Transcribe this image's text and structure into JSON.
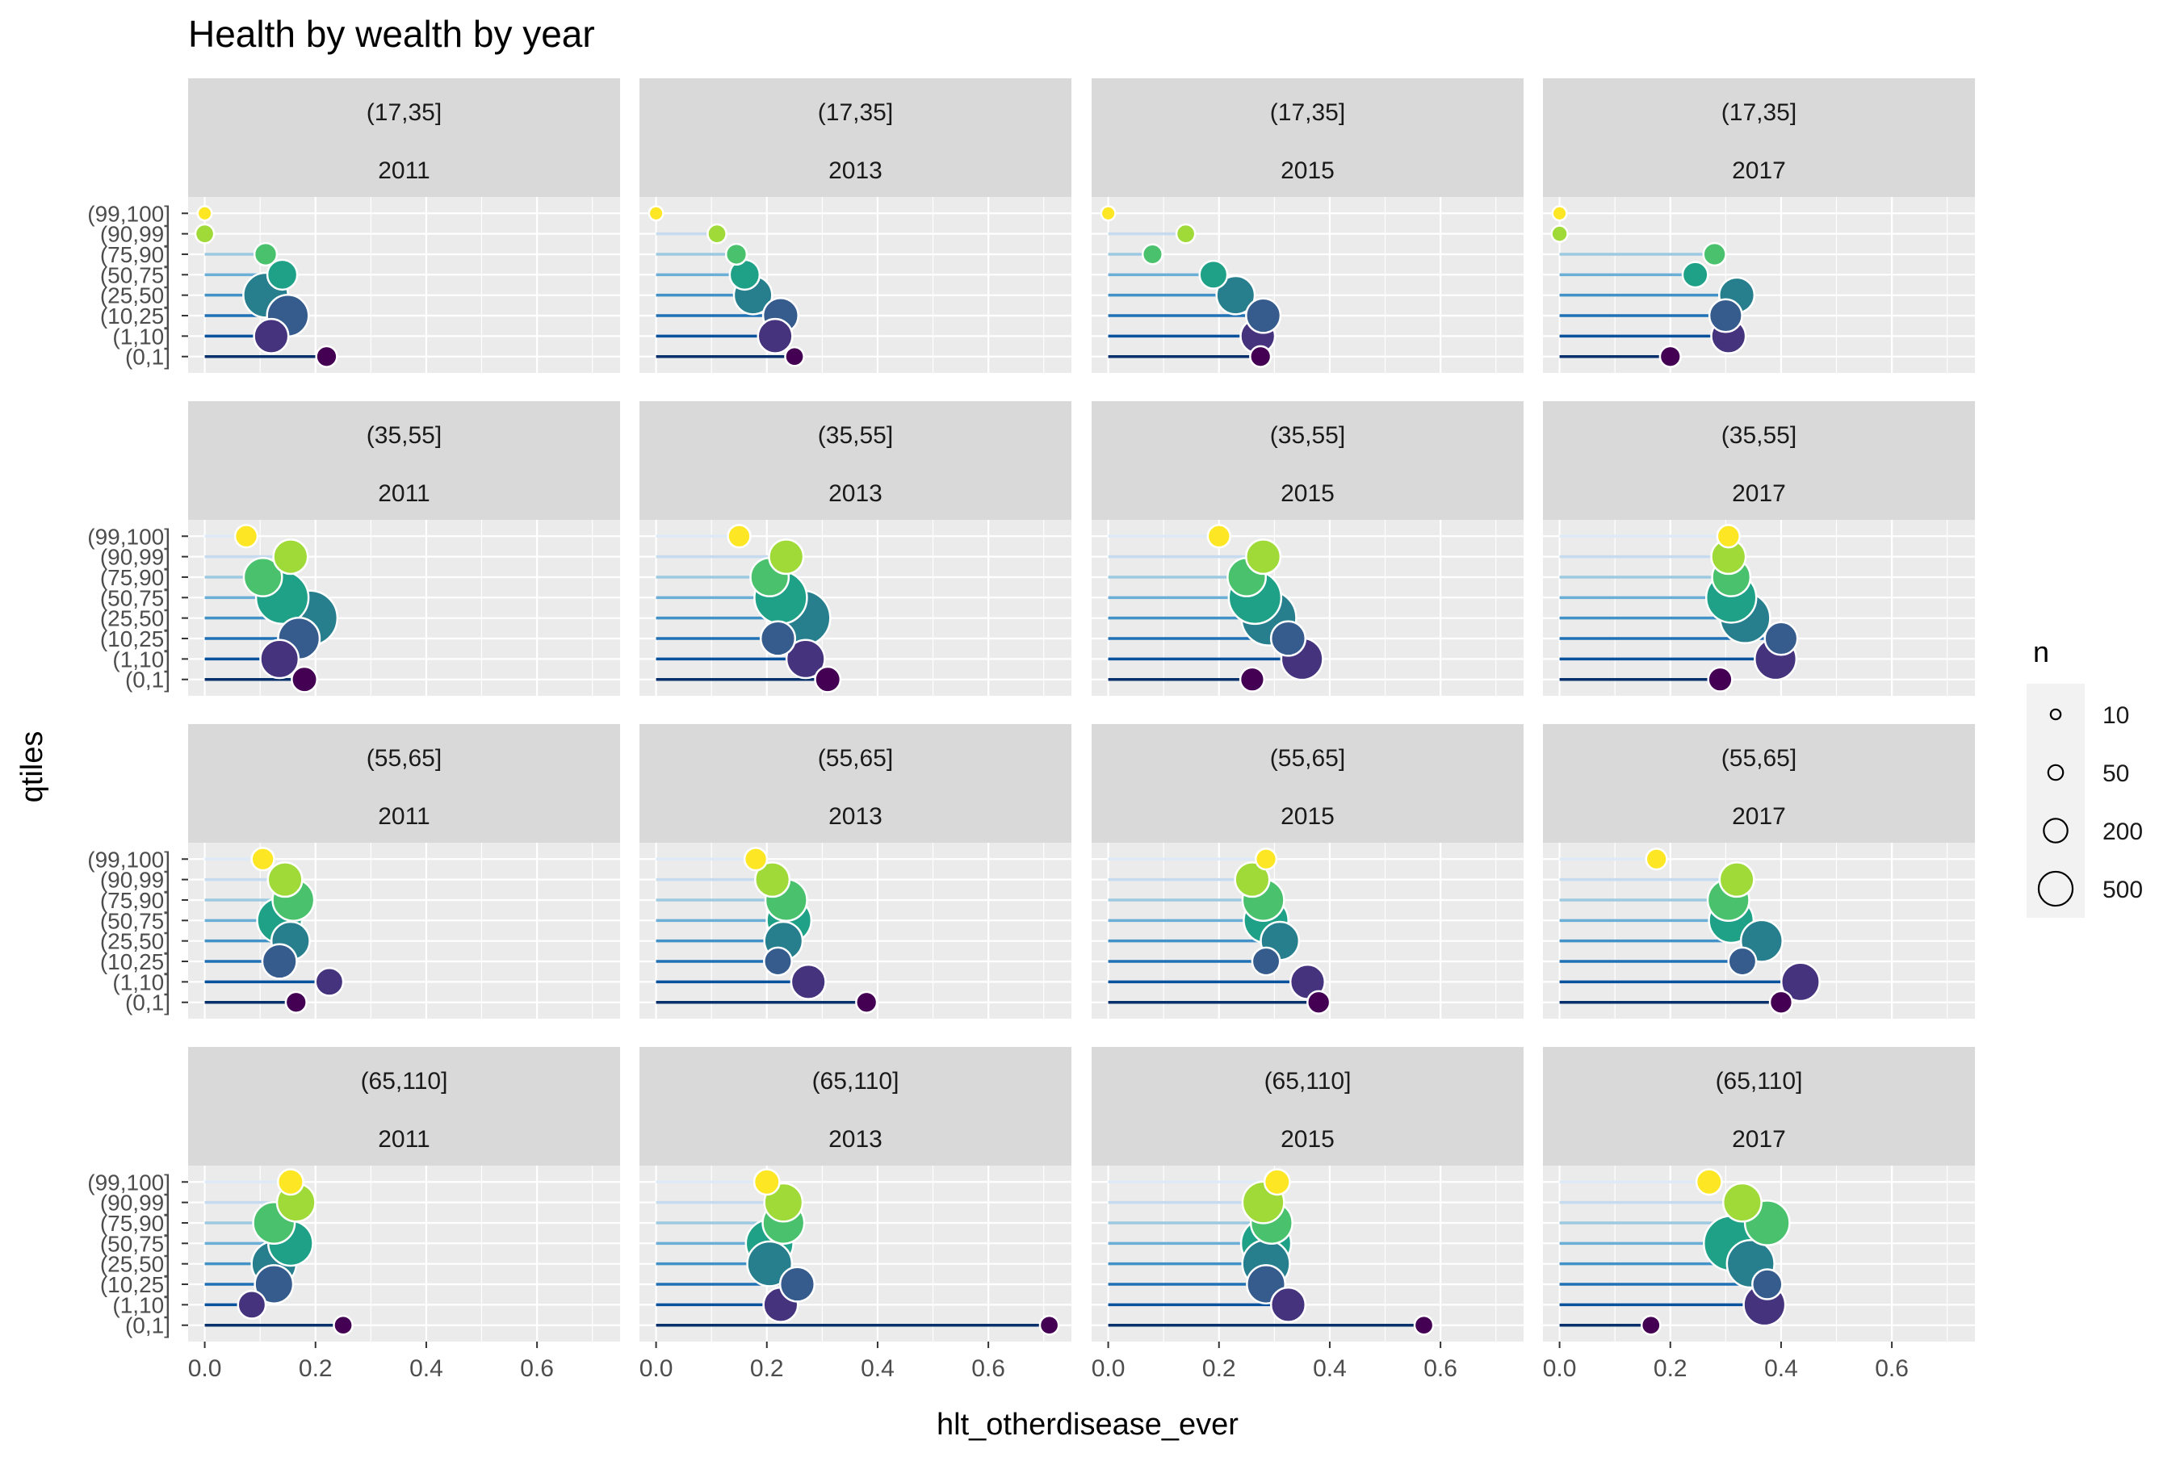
{
  "chart_data": {
    "type": "scatter",
    "style": "lollipop",
    "title": "Health by wealth by year",
    "xlabel": "hlt_otherdisease_ever",
    "ylabel": "qtiles",
    "xlim": [
      -0.03,
      0.75
    ],
    "xticks": [
      0.0,
      0.2,
      0.4,
      0.6
    ],
    "xtick_labels": [
      "0.0",
      "0.2",
      "0.4",
      "0.6"
    ],
    "grid": true,
    "categories": [
      "(0,1]",
      "(1,10]",
      "(10,25]",
      "(25,50]",
      "(50,75]",
      "(75,90]",
      "(90,99]",
      "(99,100]"
    ],
    "colors": {
      "points": [
        "#440154",
        "#46337e",
        "#365c8d",
        "#277f8e",
        "#1fa187",
        "#4ac16d",
        "#a0da39",
        "#fde725"
      ],
      "segments": [
        "#08306b",
        "#08519c",
        "#2171b5",
        "#4292c6",
        "#6baed6",
        "#9ecae1",
        "#c6dbef",
        "#deebf7"
      ],
      "panel_bg": "#ebebeb",
      "strip_bg": "#d9d9d9"
    },
    "row_facets": [
      "(17,35]",
      "(35,55]",
      "(55,65]",
      "(65,110]"
    ],
    "col_facets": [
      "2011",
      "2013",
      "2015",
      "2017"
    ],
    "size_legend": {
      "title": "n",
      "breaks": [
        10,
        50,
        200,
        500
      ],
      "labels": [
        "10",
        "50",
        "200",
        "500"
      ],
      "placement": "right"
    },
    "panels": [
      {
        "age": "(17,35]",
        "year": "2011",
        "x": [
          0.22,
          0.12,
          0.15,
          0.11,
          0.14,
          0.11,
          0.0,
          0.0
        ],
        "n": [
          30,
          150,
          250,
          300,
          100,
          40,
          20,
          5
        ]
      },
      {
        "age": "(17,35]",
        "year": "2013",
        "x": [
          0.25,
          0.215,
          0.225,
          0.175,
          0.16,
          0.145,
          0.11,
          0.0
        ],
        "n": [
          20,
          150,
          160,
          200,
          100,
          30,
          20,
          5
        ]
      },
      {
        "age": "(17,35]",
        "year": "2015",
        "x": [
          0.275,
          0.27,
          0.28,
          0.23,
          0.19,
          0.08,
          0.14,
          0.0
        ],
        "n": [
          30,
          150,
          150,
          200,
          80,
          25,
          20,
          5
        ]
      },
      {
        "age": "(17,35]",
        "year": "2017",
        "x": [
          0.2,
          0.305,
          0.3,
          0.32,
          0.245,
          0.28,
          0.0,
          0.0
        ],
        "n": [
          30,
          150,
          130,
          160,
          60,
          40,
          10,
          5
        ]
      },
      {
        "age": "(35,55]",
        "year": "2011",
        "x": [
          0.18,
          0.135,
          0.17,
          0.19,
          0.14,
          0.105,
          0.155,
          0.075
        ],
        "n": [
          60,
          200,
          250,
          500,
          450,
          200,
          150,
          40
        ]
      },
      {
        "age": "(35,55]",
        "year": "2013",
        "x": [
          0.31,
          0.27,
          0.22,
          0.265,
          0.225,
          0.205,
          0.235,
          0.15
        ],
        "n": [
          60,
          200,
          150,
          500,
          450,
          200,
          150,
          40
        ]
      },
      {
        "age": "(35,55]",
        "year": "2015",
        "x": [
          0.26,
          0.35,
          0.325,
          0.29,
          0.265,
          0.25,
          0.28,
          0.2
        ],
        "n": [
          50,
          250,
          150,
          500,
          450,
          200,
          150,
          40
        ]
      },
      {
        "age": "(35,55]",
        "year": "2017",
        "x": [
          0.29,
          0.39,
          0.4,
          0.335,
          0.31,
          0.31,
          0.305,
          0.305
        ],
        "n": [
          50,
          250,
          130,
          400,
          400,
          200,
          150,
          40
        ]
      },
      {
        "age": "(55,65]",
        "year": "2011",
        "x": [
          0.165,
          0.225,
          0.135,
          0.155,
          0.135,
          0.16,
          0.145,
          0.105
        ],
        "n": [
          30,
          80,
          150,
          200,
          300,
          250,
          150,
          40
        ]
      },
      {
        "age": "(55,65]",
        "year": "2013",
        "x": [
          0.38,
          0.275,
          0.22,
          0.23,
          0.24,
          0.235,
          0.21,
          0.18
        ],
        "n": [
          30,
          150,
          80,
          200,
          300,
          250,
          150,
          40
        ]
      },
      {
        "age": "(55,65]",
        "year": "2015",
        "x": [
          0.38,
          0.36,
          0.285,
          0.31,
          0.285,
          0.28,
          0.26,
          0.285
        ],
        "n": [
          40,
          150,
          80,
          200,
          300,
          250,
          150,
          30
        ]
      },
      {
        "age": "(55,65]",
        "year": "2017",
        "x": [
          0.4,
          0.435,
          0.33,
          0.365,
          0.31,
          0.305,
          0.32,
          0.175
        ],
        "n": [
          40,
          200,
          80,
          250,
          300,
          250,
          150,
          30
        ]
      },
      {
        "age": "(65,110]",
        "year": "2011",
        "x": [
          0.25,
          0.085,
          0.125,
          0.125,
          0.155,
          0.125,
          0.165,
          0.155
        ],
        "n": [
          20,
          80,
          200,
          300,
          300,
          250,
          200,
          60
        ]
      },
      {
        "age": "(65,110]",
        "year": "2013",
        "x": [
          0.71,
          0.225,
          0.255,
          0.205,
          0.205,
          0.23,
          0.23,
          0.2
        ],
        "n": [
          20,
          150,
          150,
          300,
          350,
          250,
          200,
          60
        ]
      },
      {
        "age": "(65,110]",
        "year": "2015",
        "x": [
          0.57,
          0.325,
          0.285,
          0.285,
          0.285,
          0.295,
          0.28,
          0.305
        ],
        "n": [
          20,
          150,
          200,
          350,
          400,
          250,
          250,
          60
        ]
      },
      {
        "age": "(65,110]",
        "year": "2017",
        "x": [
          0.165,
          0.37,
          0.375,
          0.345,
          0.31,
          0.375,
          0.33,
          0.27
        ],
        "n": [
          20,
          250,
          100,
          350,
          500,
          300,
          200,
          60
        ]
      }
    ]
  }
}
